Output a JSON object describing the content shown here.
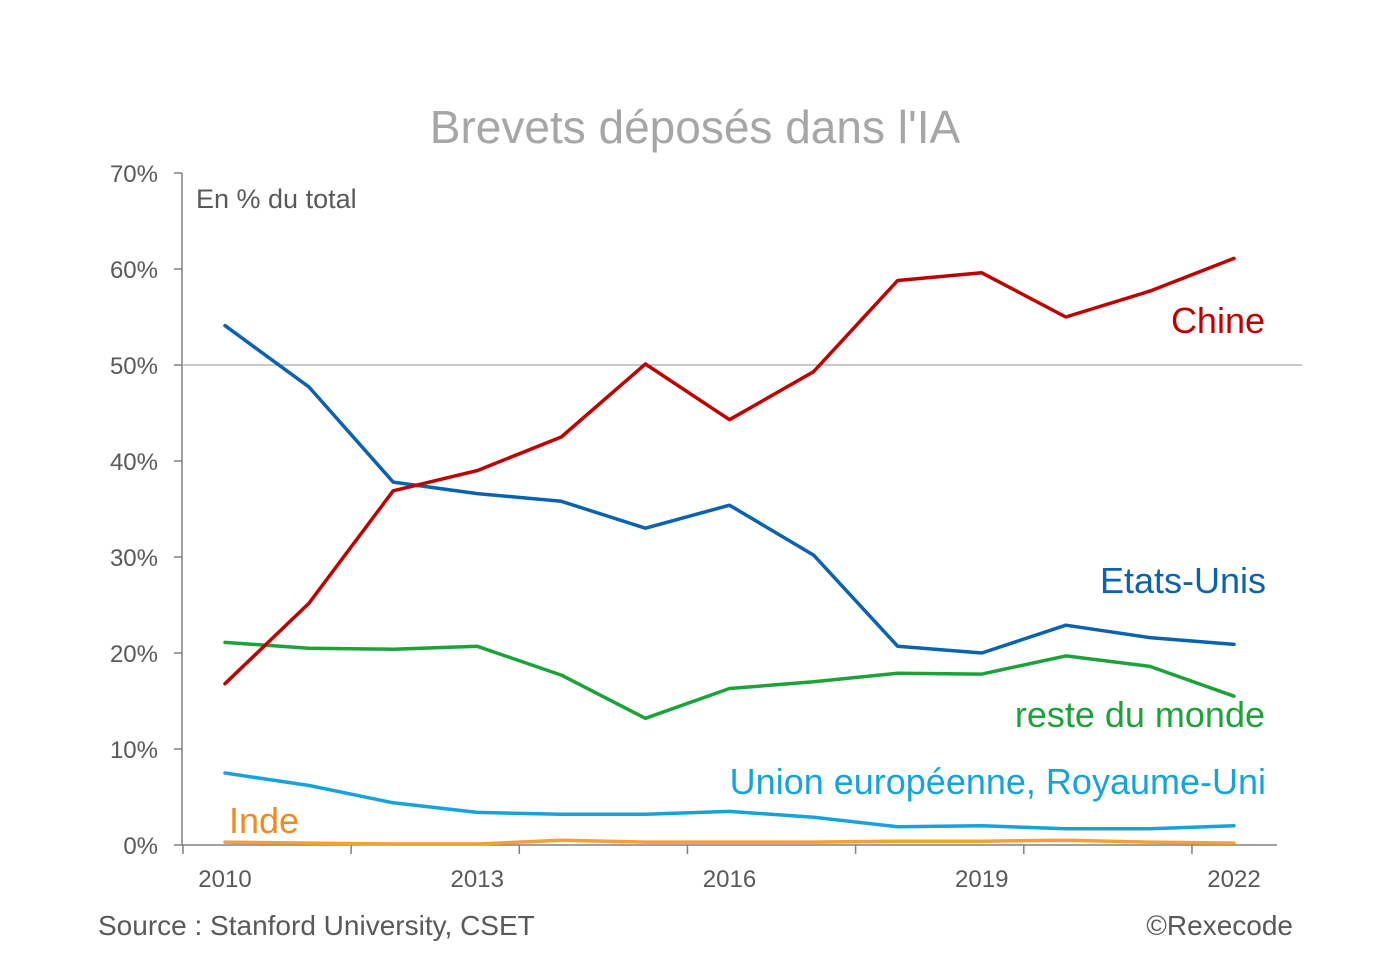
{
  "chart_data": {
    "type": "line",
    "title": "Brevets déposés dans l'IA",
    "subtitle": "En % du total",
    "source": "Source : Stanford University, CSET",
    "copyright": "©Rexecode",
    "x": [
      2010,
      2011,
      2012,
      2013,
      2014,
      2015,
      2016,
      2017,
      2018,
      2019,
      2020,
      2021,
      2022
    ],
    "xtick_labels": [
      "2010",
      "2013",
      "2016",
      "2019",
      "2022"
    ],
    "xtick_values": [
      2010,
      2013,
      2016,
      2019,
      2022
    ],
    "ytick_labels": [
      "0%",
      "10%",
      "20%",
      "30%",
      "40%",
      "50%",
      "60%",
      "70%"
    ],
    "ytick_values": [
      0,
      10,
      20,
      30,
      40,
      50,
      60,
      70
    ],
    "ylim": [
      0,
      70
    ],
    "reference_line": 50,
    "series": [
      {
        "name": "Chine",
        "color": "#c00000",
        "values": [
          16.8,
          25.2,
          36.9,
          39.0,
          42.5,
          50.1,
          44.3,
          49.3,
          58.8,
          59.6,
          55.0,
          57.7,
          61.1
        ]
      },
      {
        "name": "Etats-Unis",
        "color": "#0b62b0",
        "values": [
          54.1,
          47.7,
          37.8,
          36.6,
          35.8,
          33.0,
          35.4,
          30.2,
          20.7,
          20.0,
          22.9,
          21.6,
          20.9
        ]
      },
      {
        "name": "reste du monde",
        "color": "#1ba33a",
        "values": [
          21.1,
          20.5,
          20.4,
          20.7,
          17.7,
          13.2,
          16.3,
          17.0,
          17.9,
          17.8,
          19.7,
          18.6,
          15.5
        ]
      },
      {
        "name": "Union européenne, Royaume-Uni",
        "color": "#16a3dc",
        "values": [
          7.5,
          6.2,
          4.4,
          3.4,
          3.2,
          3.2,
          3.5,
          2.9,
          1.9,
          2.0,
          1.7,
          1.7,
          2.0
        ]
      },
      {
        "name": "Inde",
        "color": "#f4a033",
        "label_color": "#f28a1e",
        "values": [
          0.3,
          0.2,
          0.1,
          0.1,
          0.5,
          0.3,
          0.3,
          0.3,
          0.4,
          0.4,
          0.5,
          0.3,
          0.2
        ]
      }
    ]
  }
}
